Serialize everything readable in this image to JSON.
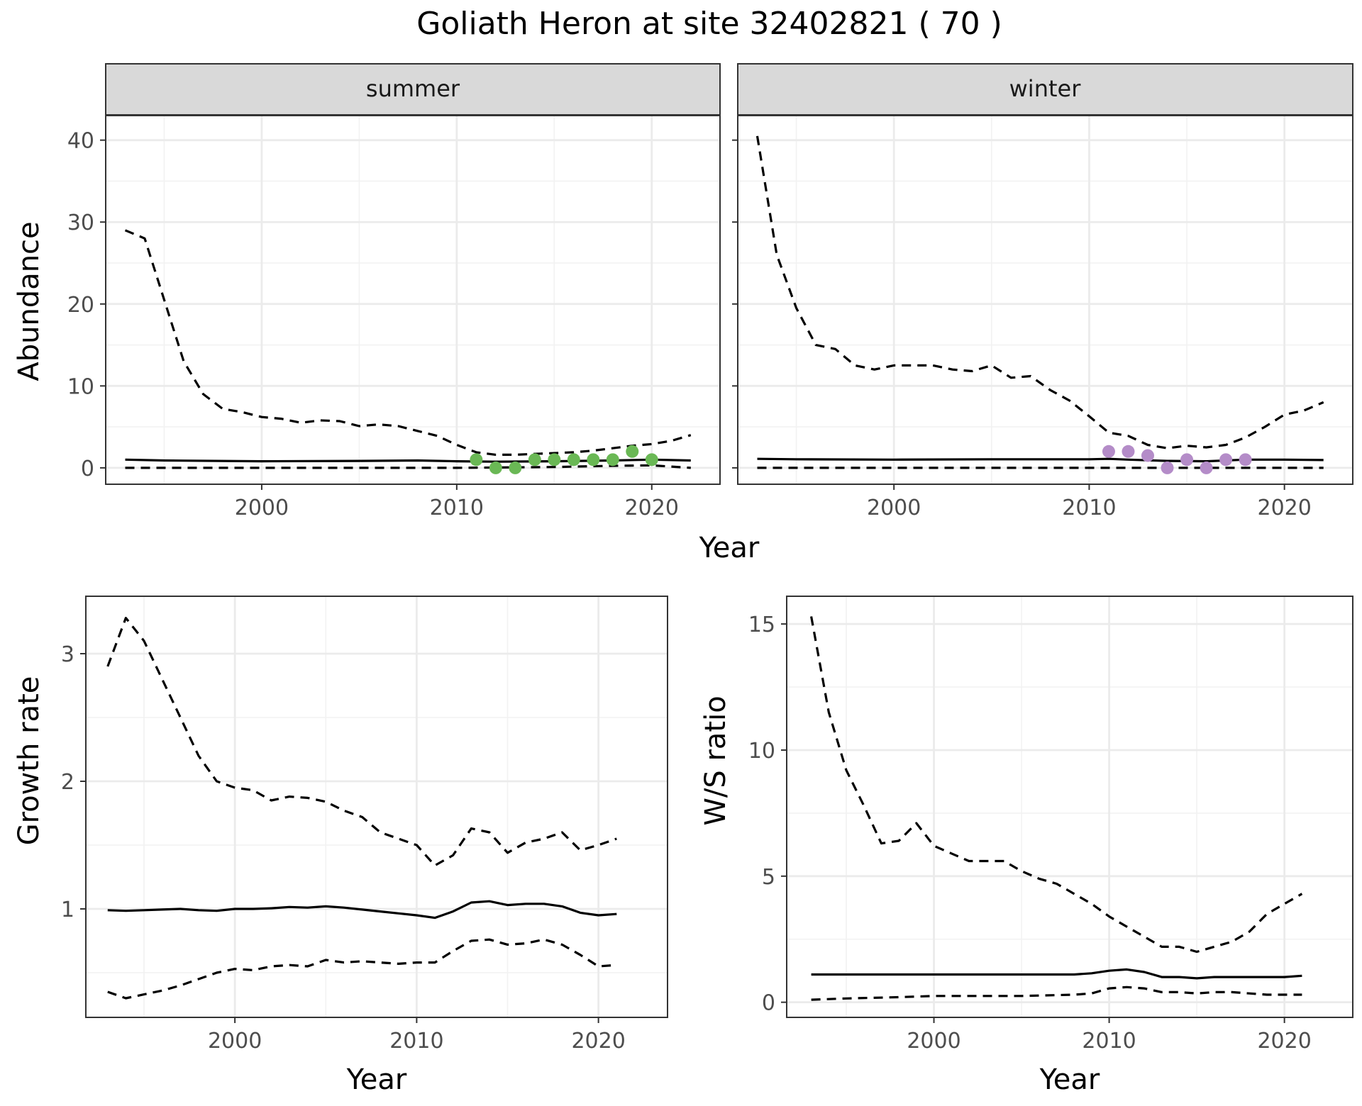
{
  "title": "Goliath Heron at site 32402821 ( 70 )",
  "colors": {
    "summer_points": "#6ab855",
    "winter_points": "#b48cc8",
    "lines": "#000000",
    "strip_bg": "#d9d9d9"
  },
  "chart_data": [
    {
      "id": "abundance-summer",
      "type": "line",
      "facet": "summer",
      "xlabel": "Year",
      "ylabel": "Abundance",
      "xlim": [
        1992,
        2023.5
      ],
      "ylim": [
        -2,
        43
      ],
      "xticks": [
        2000,
        2010,
        2020
      ],
      "yticks": [
        0,
        10,
        20,
        30,
        40
      ],
      "grid": true,
      "series": [
        {
          "style": "solid",
          "x": [
            1993,
            1995,
            2000,
            2005,
            2008,
            2010,
            2012,
            2015,
            2018,
            2020,
            2022
          ],
          "y": [
            1.0,
            0.9,
            0.8,
            0.85,
            0.9,
            0.8,
            0.75,
            0.8,
            0.9,
            1.0,
            0.9
          ]
        },
        {
          "style": "dashed",
          "x": [
            1993,
            1994,
            1995,
            1996,
            1997,
            1998,
            1999,
            2000,
            2001,
            2002,
            2003,
            2004,
            2005,
            2006,
            2007,
            2008,
            2009,
            2010,
            2011,
            2012,
            2013,
            2014,
            2015,
            2016,
            2017,
            2018,
            2019,
            2020,
            2021,
            2022
          ],
          "y": [
            29,
            28,
            20.5,
            13,
            9,
            7.2,
            6.8,
            6.2,
            6.0,
            5.5,
            5.8,
            5.7,
            5.1,
            5.3,
            5.1,
            4.5,
            3.9,
            2.8,
            1.9,
            1.6,
            1.6,
            1.7,
            1.8,
            1.9,
            2.1,
            2.4,
            2.7,
            2.9,
            3.3,
            4.0
          ]
        },
        {
          "style": "dashed",
          "x": [
            1993,
            2000,
            2010,
            2015,
            2018,
            2020,
            2022
          ],
          "y": [
            0,
            0,
            0,
            0.1,
            0.25,
            0.3,
            0.0
          ]
        }
      ],
      "points": {
        "x": [
          2011,
          2012,
          2013,
          2014,
          2015,
          2016,
          2017,
          2018,
          2019,
          2020
        ],
        "y": [
          1,
          0,
          0,
          1,
          1,
          1,
          1,
          1,
          2,
          1
        ]
      }
    },
    {
      "id": "abundance-winter",
      "type": "line",
      "facet": "winter",
      "xlabel": "Year",
      "ylabel": "Abundance",
      "xlim": [
        1992,
        2023.5
      ],
      "ylim": [
        -2,
        43
      ],
      "xticks": [
        2000,
        2010,
        2020
      ],
      "yticks": [
        0,
        10,
        20,
        30,
        40
      ],
      "grid": true,
      "series": [
        {
          "style": "solid",
          "x": [
            1993,
            1995,
            2000,
            2005,
            2010,
            2011,
            2012,
            2014,
            2016,
            2018,
            2020,
            2022
          ],
          "y": [
            1.1,
            1.05,
            1.0,
            1.05,
            1.05,
            1.1,
            1.0,
            0.85,
            0.8,
            1.0,
            1.0,
            0.95
          ]
        },
        {
          "style": "dashed",
          "x": [
            1993,
            1994,
            1995,
            1996,
            1997,
            1998,
            1999,
            2000,
            2001,
            2002,
            2003,
            2004,
            2005,
            2006,
            2007,
            2008,
            2009,
            2010,
            2011,
            2012,
            2013,
            2014,
            2015,
            2016,
            2017,
            2018,
            2019,
            2020,
            2021,
            2022
          ],
          "y": [
            40.5,
            26,
            19.5,
            15,
            14.5,
            12.5,
            12,
            12.5,
            12.5,
            12.5,
            12,
            11.8,
            12.5,
            11,
            11.2,
            9.5,
            8.2,
            6.3,
            4.3,
            3.9,
            2.8,
            2.4,
            2.7,
            2.5,
            2.8,
            3.7,
            5.0,
            6.5,
            7.0,
            8.0
          ]
        },
        {
          "style": "dashed",
          "x": [
            1993,
            2000,
            2010,
            2015,
            2022
          ],
          "y": [
            0,
            0,
            0,
            0,
            0
          ]
        }
      ],
      "points": {
        "x": [
          2011,
          2012,
          2013,
          2014,
          2015,
          2016,
          2017,
          2018
        ],
        "y": [
          2,
          2,
          1.5,
          0,
          1,
          0,
          1,
          1
        ]
      }
    },
    {
      "id": "growth-rate",
      "type": "line",
      "xlabel": "Year",
      "ylabel": "Growth rate",
      "xlim": [
        1991.8,
        2023.8
      ],
      "ylim": [
        0.15,
        3.45
      ],
      "xticks": [
        2000,
        2010,
        2020
      ],
      "yticks": [
        1,
        2,
        3
      ],
      "grid": true,
      "series": [
        {
          "style": "solid",
          "x": [
            1993,
            1994,
            1995,
            1996,
            1997,
            1998,
            1999,
            2000,
            2001,
            2002,
            2003,
            2004,
            2005,
            2006,
            2007,
            2008,
            2009,
            2010,
            2011,
            2012,
            2013,
            2014,
            2015,
            2016,
            2017,
            2018,
            2019,
            2020,
            2021
          ],
          "y": [
            0.99,
            0.985,
            0.99,
            0.995,
            1.0,
            0.99,
            0.985,
            1.0,
            1.0,
            1.005,
            1.015,
            1.01,
            1.02,
            1.01,
            0.995,
            0.98,
            0.965,
            0.95,
            0.93,
            0.98,
            1.05,
            1.06,
            1.03,
            1.04,
            1.04,
            1.02,
            0.97,
            0.95,
            0.96
          ]
        },
        {
          "style": "dashed",
          "x": [
            1993,
            1994,
            1995,
            1996,
            1997,
            1998,
            1999,
            2000,
            2001,
            2002,
            2003,
            2004,
            2005,
            2006,
            2007,
            2008,
            2009,
            2010,
            2011,
            2012,
            2013,
            2014,
            2015,
            2016,
            2017,
            2018,
            2019,
            2020,
            2021
          ],
          "y": [
            2.9,
            3.28,
            3.1,
            2.8,
            2.5,
            2.2,
            2.0,
            1.95,
            1.93,
            1.85,
            1.88,
            1.87,
            1.84,
            1.77,
            1.72,
            1.6,
            1.55,
            1.5,
            1.34,
            1.42,
            1.63,
            1.6,
            1.44,
            1.52,
            1.55,
            1.6,
            1.46,
            1.5,
            1.55
          ]
        },
        {
          "style": "dashed",
          "x": [
            1993,
            1994,
            1995,
            1996,
            1997,
            1998,
            1999,
            2000,
            2001,
            2002,
            2003,
            2004,
            2005,
            2006,
            2007,
            2008,
            2009,
            2010,
            2011,
            2012,
            2013,
            2014,
            2015,
            2016,
            2017,
            2018,
            2019,
            2020,
            2021
          ],
          "y": [
            0.35,
            0.3,
            0.33,
            0.36,
            0.4,
            0.45,
            0.5,
            0.53,
            0.52,
            0.55,
            0.56,
            0.55,
            0.6,
            0.58,
            0.59,
            0.58,
            0.57,
            0.58,
            0.58,
            0.67,
            0.75,
            0.76,
            0.72,
            0.73,
            0.76,
            0.72,
            0.64,
            0.55,
            0.56
          ]
        }
      ]
    },
    {
      "id": "ws-ratio",
      "type": "line",
      "xlabel": "Year",
      "ylabel": "W/S ratio",
      "xlim": [
        1991.6,
        2023.9
      ],
      "ylim": [
        -0.6,
        16.1
      ],
      "xticks": [
        2000,
        2010,
        2020
      ],
      "yticks": [
        0,
        5,
        10,
        15
      ],
      "grid": true,
      "series": [
        {
          "style": "solid",
          "x": [
            1993,
            1995,
            2000,
            2005,
            2008,
            2009,
            2010,
            2011,
            2012,
            2013,
            2014,
            2015,
            2016,
            2018,
            2020,
            2021
          ],
          "y": [
            1.1,
            1.1,
            1.1,
            1.1,
            1.1,
            1.15,
            1.25,
            1.3,
            1.2,
            1.0,
            1.0,
            0.95,
            1.0,
            1.0,
            1.0,
            1.05
          ]
        },
        {
          "style": "dashed",
          "x": [
            1993,
            1994,
            1995,
            1996,
            1997,
            1998,
            1999,
            2000,
            2001,
            2002,
            2003,
            2004,
            2005,
            2006,
            2007,
            2008,
            2009,
            2010,
            2011,
            2012,
            2013,
            2014,
            2015,
            2016,
            2017,
            2018,
            2019,
            2020,
            2021
          ],
          "y": [
            15.3,
            11.5,
            9.2,
            7.8,
            6.3,
            6.4,
            7.1,
            6.2,
            5.9,
            5.6,
            5.6,
            5.6,
            5.2,
            4.9,
            4.7,
            4.3,
            3.9,
            3.4,
            3.0,
            2.6,
            2.2,
            2.2,
            2.0,
            2.2,
            2.4,
            2.8,
            3.5,
            3.9,
            4.3
          ]
        },
        {
          "style": "dashed",
          "x": [
            1993,
            1995,
            1998,
            2000,
            2002,
            2005,
            2008,
            2009,
            2010,
            2011,
            2012,
            2013,
            2014,
            2015,
            2016,
            2017,
            2018,
            2019,
            2020,
            2021
          ],
          "y": [
            0.1,
            0.15,
            0.2,
            0.25,
            0.25,
            0.25,
            0.3,
            0.35,
            0.55,
            0.6,
            0.55,
            0.4,
            0.4,
            0.35,
            0.4,
            0.4,
            0.35,
            0.3,
            0.3,
            0.3
          ]
        }
      ]
    }
  ]
}
